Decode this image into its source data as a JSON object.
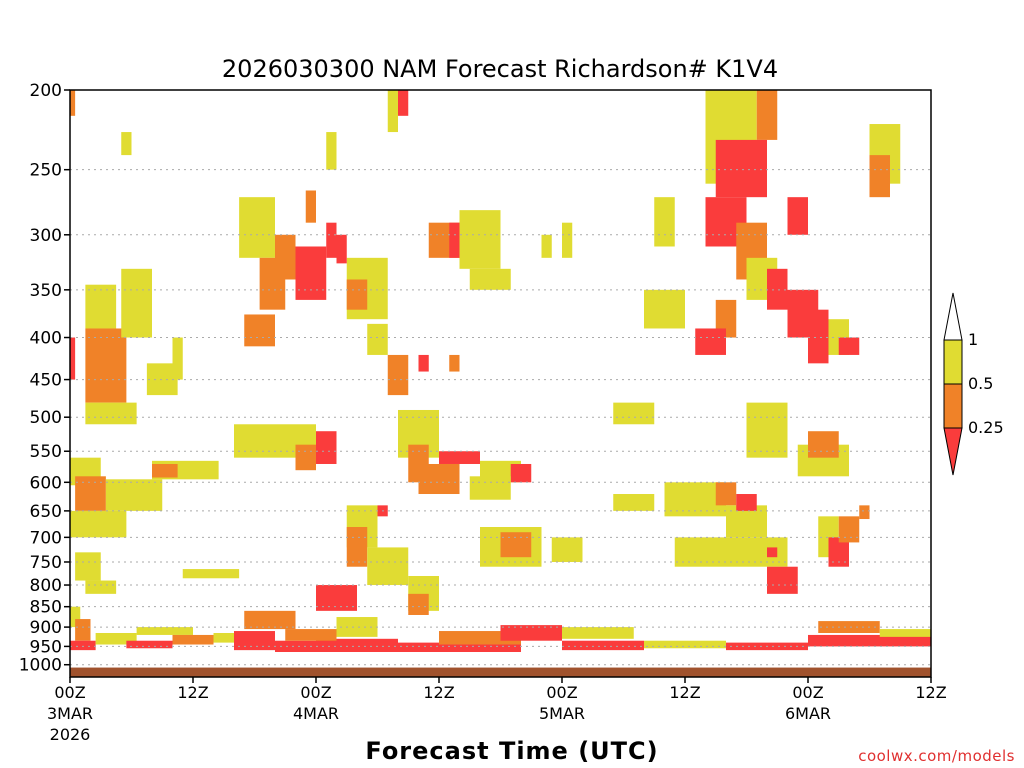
{
  "chart_data": {
    "type": "heatmap",
    "title": "2026030300 NAM Forecast Richardson# K1V4",
    "xlabel": "Forecast Time (UTC)",
    "ylabel": "",
    "credit": "coolwx.com/models",
    "x_range_hours": [
      0,
      84
    ],
    "y_range_hpa": [
      200,
      1035
    ],
    "grid": "dotted horizontal lines at labeled pressure levels",
    "y_ticks": [
      "200",
      "250",
      "300",
      "350",
      "400",
      "450",
      "500",
      "550",
      "600",
      "650",
      "700",
      "750",
      "800",
      "850",
      "900",
      "950",
      "1000"
    ],
    "x_ticks": [
      {
        "label": "00Z",
        "sub": "3MAR",
        "sub2": "2026",
        "hour": 0
      },
      {
        "label": "12Z",
        "sub": "",
        "sub2": "",
        "hour": 12
      },
      {
        "label": "00Z",
        "sub": "4MAR",
        "sub2": "",
        "hour": 24
      },
      {
        "label": "12Z",
        "sub": "",
        "sub2": "",
        "hour": 36
      },
      {
        "label": "00Z",
        "sub": "5MAR",
        "sub2": "",
        "hour": 48
      },
      {
        "label": "12Z",
        "sub": "",
        "sub2": "",
        "hour": 60
      },
      {
        "label": "00Z",
        "sub": "6MAR",
        "sub2": "",
        "hour": 72
      },
      {
        "label": "12Z",
        "sub": "",
        "sub2": "",
        "hour": 84
      }
    ],
    "legend": {
      "placement": "right",
      "entries": [
        {
          "label": "1",
          "color": "#ffffff",
          "range": "> 1"
        },
        {
          "label": "0.5",
          "color": "#e0dc32",
          "range": "0.5 - 1"
        },
        {
          "label": "0.25",
          "color": "#f08228",
          "range": "0.25 - 0.5"
        },
        {
          "label": "",
          "color": "#fa3c3c",
          "range": "< 0.25"
        }
      ]
    },
    "colors": {
      "yellow": "#e0dc32",
      "orange": "#f08228",
      "red": "#fa3c3c",
      "ground": "#a0522d"
    },
    "terrain_surface_hpa": 1008,
    "cells": [
      {
        "h0": 0,
        "h1": 0.5,
        "p0": 200,
        "p1": 215,
        "c": "orange"
      },
      {
        "h0": 1.5,
        "h1": 4.5,
        "p0": 345,
        "p1": 390,
        "c": "yellow"
      },
      {
        "h0": 1.5,
        "h1": 5.5,
        "p0": 390,
        "p1": 480,
        "c": "orange"
      },
      {
        "h0": 1.5,
        "h1": 6.5,
        "p0": 480,
        "p1": 510,
        "c": "yellow"
      },
      {
        "h0": 5,
        "h1": 8,
        "p0": 330,
        "p1": 400,
        "c": "yellow"
      },
      {
        "h0": 7.5,
        "h1": 10.5,
        "p0": 430,
        "p1": 470,
        "c": "yellow"
      },
      {
        "h0": 0,
        "h1": 0.5,
        "p0": 400,
        "p1": 450,
        "c": "red"
      },
      {
        "h0": 0,
        "h1": 3,
        "p0": 560,
        "p1": 605,
        "c": "yellow"
      },
      {
        "h0": 0.5,
        "h1": 3.5,
        "p0": 590,
        "p1": 650,
        "c": "orange"
      },
      {
        "h0": 0,
        "h1": 5.5,
        "p0": 650,
        "p1": 700,
        "c": "yellow"
      },
      {
        "h0": 3.5,
        "h1": 9,
        "p0": 595,
        "p1": 650,
        "c": "yellow"
      },
      {
        "h0": 8,
        "h1": 14.5,
        "p0": 565,
        "p1": 595,
        "c": "yellow"
      },
      {
        "h0": 8,
        "h1": 10.5,
        "p0": 570,
        "p1": 592,
        "c": "orange"
      },
      {
        "h0": 0.5,
        "h1": 3,
        "p0": 730,
        "p1": 790,
        "c": "yellow"
      },
      {
        "h0": 1.5,
        "h1": 4.5,
        "p0": 790,
        "p1": 820,
        "c": "yellow"
      },
      {
        "h0": 11,
        "h1": 16.5,
        "p0": 765,
        "p1": 785,
        "c": "yellow"
      },
      {
        "h0": 0,
        "h1": 1,
        "p0": 850,
        "p1": 900,
        "c": "yellow"
      },
      {
        "h0": 0.5,
        "h1": 2,
        "p0": 880,
        "p1": 935,
        "c": "orange"
      },
      {
        "h0": 0,
        "h1": 2.5,
        "p0": 935,
        "p1": 960,
        "c": "red"
      },
      {
        "h0": 2.5,
        "h1": 6.5,
        "p0": 915,
        "p1": 945,
        "c": "yellow"
      },
      {
        "h0": 5.5,
        "h1": 10,
        "p0": 935,
        "p1": 955,
        "c": "red"
      },
      {
        "h0": 6.5,
        "h1": 12,
        "p0": 900,
        "p1": 920,
        "c": "yellow"
      },
      {
        "h0": 10,
        "h1": 14,
        "p0": 920,
        "p1": 945,
        "c": "orange"
      },
      {
        "h0": 14,
        "h1": 17,
        "p0": 915,
        "p1": 940,
        "c": "yellow"
      },
      {
        "h0": 16,
        "h1": 20,
        "p0": 910,
        "p1": 960,
        "c": "red"
      },
      {
        "h0": 20,
        "h1": 24,
        "p0": 935,
        "p1": 965,
        "c": "red"
      },
      {
        "h0": 24,
        "h1": 32,
        "p0": 930,
        "p1": 965,
        "c": "red"
      },
      {
        "h0": 21,
        "h1": 26,
        "p0": 905,
        "p1": 935,
        "c": "orange"
      },
      {
        "h0": 17,
        "h1": 22,
        "p0": 860,
        "p1": 905,
        "c": "orange"
      },
      {
        "h0": 26,
        "h1": 30,
        "p0": 875,
        "p1": 925,
        "c": "yellow"
      },
      {
        "h0": 32,
        "h1": 44,
        "p0": 940,
        "p1": 965,
        "c": "red"
      },
      {
        "h0": 36,
        "h1": 44,
        "p0": 910,
        "p1": 945,
        "c": "orange"
      },
      {
        "h0": 42,
        "h1": 48,
        "p0": 895,
        "p1": 935,
        "c": "red"
      },
      {
        "h0": 48,
        "h1": 56,
        "p0": 935,
        "p1": 960,
        "c": "red"
      },
      {
        "h0": 48,
        "h1": 55,
        "p0": 900,
        "p1": 930,
        "c": "yellow"
      },
      {
        "h0": 56,
        "h1": 64,
        "p0": 935,
        "p1": 955,
        "c": "yellow"
      },
      {
        "h0": 64,
        "h1": 72,
        "p0": 940,
        "p1": 960,
        "c": "red"
      },
      {
        "h0": 72,
        "h1": 84,
        "p0": 920,
        "p1": 950,
        "c": "red"
      },
      {
        "h0": 73,
        "h1": 79,
        "p0": 885,
        "p1": 915,
        "c": "orange"
      },
      {
        "h0": 79,
        "h1": 84,
        "p0": 905,
        "p1": 925,
        "c": "yellow"
      },
      {
        "h0": 16.5,
        "h1": 20,
        "p0": 270,
        "p1": 320,
        "c": "yellow"
      },
      {
        "h0": 18.5,
        "h1": 21,
        "p0": 320,
        "p1": 370,
        "c": "orange"
      },
      {
        "h0": 22,
        "h1": 25,
        "p0": 310,
        "p1": 360,
        "c": "red"
      },
      {
        "h0": 23,
        "h1": 24,
        "p0": 265,
        "p1": 290,
        "c": "orange"
      },
      {
        "h0": 25,
        "h1": 26,
        "p0": 290,
        "p1": 320,
        "c": "red"
      },
      {
        "h0": 17,
        "h1": 20,
        "p0": 375,
        "p1": 410,
        "c": "orange"
      },
      {
        "h0": 20,
        "h1": 22,
        "p0": 300,
        "p1": 340,
        "c": "orange"
      },
      {
        "h0": 27,
        "h1": 31,
        "p0": 320,
        "p1": 380,
        "c": "yellow"
      },
      {
        "h0": 27,
        "h1": 29,
        "p0": 340,
        "p1": 370,
        "c": "orange"
      },
      {
        "h0": 26,
        "h1": 27,
        "p0": 300,
        "p1": 325,
        "c": "red"
      },
      {
        "h0": 29,
        "h1": 31,
        "p0": 385,
        "p1": 420,
        "c": "yellow"
      },
      {
        "h0": 31,
        "h1": 33,
        "p0": 420,
        "p1": 470,
        "c": "orange"
      },
      {
        "h0": 34,
        "h1": 35,
        "p0": 420,
        "p1": 440,
        "c": "red"
      },
      {
        "h0": 37,
        "h1": 38,
        "p0": 420,
        "p1": 440,
        "c": "orange"
      },
      {
        "h0": 35,
        "h1": 39,
        "p0": 290,
        "p1": 320,
        "c": "orange"
      },
      {
        "h0": 37,
        "h1": 38,
        "p0": 290,
        "p1": 320,
        "c": "red"
      },
      {
        "h0": 38,
        "h1": 42,
        "p0": 280,
        "p1": 330,
        "c": "yellow"
      },
      {
        "h0": 39,
        "h1": 43,
        "p0": 330,
        "p1": 350,
        "c": "yellow"
      },
      {
        "h0": 31,
        "h1": 32,
        "p0": 200,
        "p1": 225,
        "c": "yellow"
      },
      {
        "h0": 32,
        "h1": 33,
        "p0": 200,
        "p1": 215,
        "c": "red"
      },
      {
        "h0": 17,
        "h1": 21,
        "p0": 520,
        "p1": 545,
        "c": "orange"
      },
      {
        "h0": 16,
        "h1": 24,
        "p0": 510,
        "p1": 560,
        "c": "yellow"
      },
      {
        "h0": 24,
        "h1": 26,
        "p0": 520,
        "p1": 570,
        "c": "red"
      },
      {
        "h0": 22,
        "h1": 24,
        "p0": 540,
        "p1": 580,
        "c": "orange"
      },
      {
        "h0": 32,
        "h1": 36,
        "p0": 490,
        "p1": 560,
        "c": "yellow"
      },
      {
        "h0": 33,
        "h1": 35,
        "p0": 540,
        "p1": 600,
        "c": "orange"
      },
      {
        "h0": 34,
        "h1": 38,
        "p0": 570,
        "p1": 620,
        "c": "orange"
      },
      {
        "h0": 36,
        "h1": 40,
        "p0": 550,
        "p1": 570,
        "c": "red"
      },
      {
        "h0": 40,
        "h1": 44,
        "p0": 565,
        "p1": 600,
        "c": "yellow"
      },
      {
        "h0": 43,
        "h1": 45,
        "p0": 570,
        "p1": 600,
        "c": "red"
      },
      {
        "h0": 27,
        "h1": 30,
        "p0": 640,
        "p1": 720,
        "c": "yellow"
      },
      {
        "h0": 27,
        "h1": 29,
        "p0": 680,
        "p1": 760,
        "c": "orange"
      },
      {
        "h0": 29,
        "h1": 33,
        "p0": 720,
        "p1": 800,
        "c": "yellow"
      },
      {
        "h0": 30,
        "h1": 31,
        "p0": 640,
        "p1": 660,
        "c": "red"
      },
      {
        "h0": 33,
        "h1": 36,
        "p0": 780,
        "p1": 860,
        "c": "yellow"
      },
      {
        "h0": 33,
        "h1": 35,
        "p0": 820,
        "p1": 870,
        "c": "orange"
      },
      {
        "h0": 24,
        "h1": 28,
        "p0": 800,
        "p1": 860,
        "c": "red"
      },
      {
        "h0": 40,
        "h1": 46,
        "p0": 680,
        "p1": 760,
        "c": "yellow"
      },
      {
        "h0": 42,
        "h1": 45,
        "p0": 690,
        "p1": 740,
        "c": "orange"
      },
      {
        "h0": 39,
        "h1": 43,
        "p0": 590,
        "p1": 630,
        "c": "yellow"
      },
      {
        "h0": 47,
        "h1": 50,
        "p0": 700,
        "p1": 750,
        "c": "yellow"
      },
      {
        "h0": 53,
        "h1": 57,
        "p0": 620,
        "p1": 650,
        "c": "yellow"
      },
      {
        "h0": 53,
        "h1": 57,
        "p0": 480,
        "p1": 510,
        "c": "yellow"
      },
      {
        "h0": 58,
        "h1": 64,
        "p0": 600,
        "p1": 660,
        "c": "yellow"
      },
      {
        "h0": 63,
        "h1": 65,
        "p0": 600,
        "p1": 640,
        "c": "orange"
      },
      {
        "h0": 64,
        "h1": 68,
        "p0": 640,
        "p1": 700,
        "c": "yellow"
      },
      {
        "h0": 65,
        "h1": 67,
        "p0": 620,
        "p1": 650,
        "c": "red"
      },
      {
        "h0": 59,
        "h1": 70,
        "p0": 700,
        "p1": 760,
        "c": "yellow"
      },
      {
        "h0": 68,
        "h1": 69,
        "p0": 720,
        "p1": 740,
        "c": "red"
      },
      {
        "h0": 68,
        "h1": 71,
        "p0": 760,
        "p1": 820,
        "c": "red"
      },
      {
        "h0": 73,
        "h1": 75,
        "p0": 660,
        "p1": 740,
        "c": "yellow"
      },
      {
        "h0": 74,
        "h1": 76,
        "p0": 700,
        "p1": 760,
        "c": "red"
      },
      {
        "h0": 75,
        "h1": 77,
        "p0": 660,
        "p1": 710,
        "c": "orange"
      },
      {
        "h0": 77,
        "h1": 78,
        "p0": 640,
        "p1": 665,
        "c": "orange"
      },
      {
        "h0": 66,
        "h1": 70,
        "p0": 480,
        "p1": 560,
        "c": "yellow"
      },
      {
        "h0": 69,
        "h1": 70,
        "p0": 500,
        "p1": 530,
        "c": "yellow"
      },
      {
        "h0": 71,
        "h1": 76,
        "p0": 540,
        "p1": 590,
        "c": "yellow"
      },
      {
        "h0": 72,
        "h1": 75,
        "p0": 520,
        "p1": 560,
        "c": "orange"
      },
      {
        "h0": 62,
        "h1": 67,
        "p0": 200,
        "p1": 260,
        "c": "yellow"
      },
      {
        "h0": 67,
        "h1": 69,
        "p0": 200,
        "p1": 230,
        "c": "orange"
      },
      {
        "h0": 63,
        "h1": 68,
        "p0": 230,
        "p1": 270,
        "c": "red"
      },
      {
        "h0": 62,
        "h1": 66,
        "p0": 270,
        "p1": 310,
        "c": "red"
      },
      {
        "h0": 65,
        "h1": 68,
        "p0": 290,
        "p1": 340,
        "c": "orange"
      },
      {
        "h0": 66,
        "h1": 69,
        "p0": 320,
        "p1": 360,
        "c": "yellow"
      },
      {
        "h0": 68,
        "h1": 70,
        "p0": 330,
        "p1": 370,
        "c": "red"
      },
      {
        "h0": 70,
        "h1": 73,
        "p0": 350,
        "p1": 400,
        "c": "red"
      },
      {
        "h0": 72,
        "h1": 74,
        "p0": 370,
        "p1": 430,
        "c": "red"
      },
      {
        "h0": 70,
        "h1": 72,
        "p0": 270,
        "p1": 300,
        "c": "red"
      },
      {
        "h0": 63,
        "h1": 65,
        "p0": 360,
        "p1": 400,
        "c": "orange"
      },
      {
        "h0": 61,
        "h1": 64,
        "p0": 390,
        "p1": 420,
        "c": "red"
      },
      {
        "h0": 74,
        "h1": 76,
        "p0": 380,
        "p1": 420,
        "c": "yellow"
      },
      {
        "h0": 75,
        "h1": 77,
        "p0": 400,
        "p1": 420,
        "c": "red"
      },
      {
        "h0": 78,
        "h1": 81,
        "p0": 220,
        "p1": 260,
        "c": "yellow"
      },
      {
        "h0": 78,
        "h1": 80,
        "p0": 240,
        "p1": 270,
        "c": "orange"
      },
      {
        "h0": 56,
        "h1": 60,
        "p0": 350,
        "p1": 390,
        "c": "yellow"
      },
      {
        "h0": 57,
        "h1": 59,
        "p0": 270,
        "p1": 310,
        "c": "yellow"
      },
      {
        "h0": 48,
        "h1": 49,
        "p0": 290,
        "p1": 320,
        "c": "yellow"
      },
      {
        "h0": 46,
        "h1": 47,
        "p0": 300,
        "p1": 320,
        "c": "yellow"
      },
      {
        "h0": 10,
        "h1": 11,
        "p0": 400,
        "p1": 450,
        "c": "yellow"
      },
      {
        "h0": 5,
        "h1": 6,
        "p0": 225,
        "p1": 240,
        "c": "yellow"
      },
      {
        "h0": 25,
        "h1": 26,
        "p0": 225,
        "p1": 250,
        "c": "yellow"
      }
    ]
  }
}
